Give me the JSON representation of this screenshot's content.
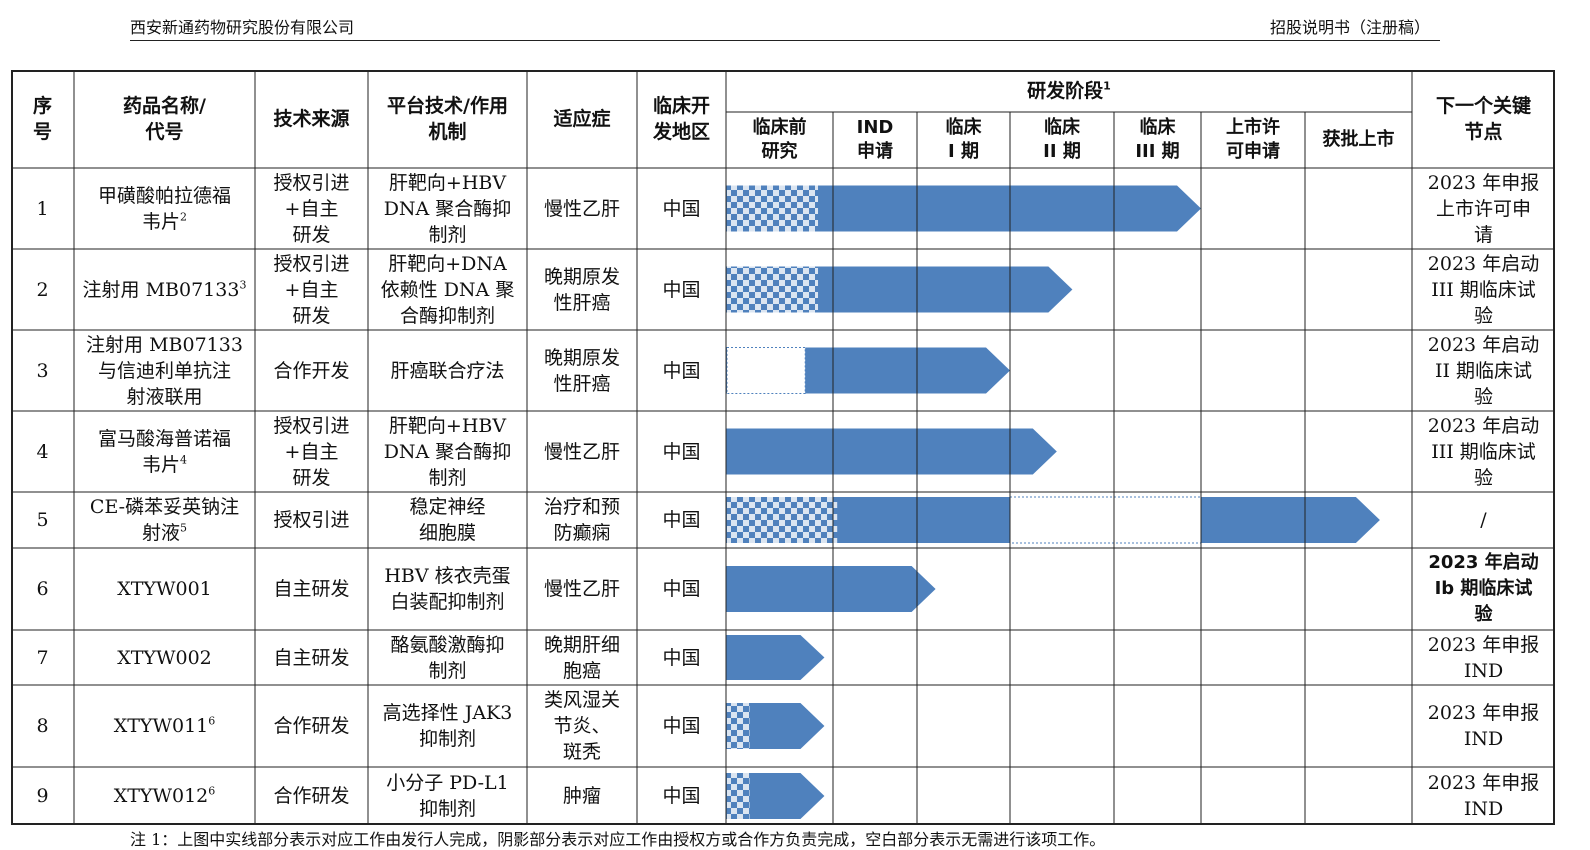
{
  "page_header": {
    "company": "西安新通药物研究股份有限公司",
    "doc_type": "招股说明书（注册稿）"
  },
  "table": {
    "headers": {
      "no": "序\n号",
      "drug_name": "药品名称/\n代号",
      "tech_source": "技术来源",
      "platform": "平台技术/作用\n机制",
      "indication": "适应症",
      "region": "临床开\n发地区",
      "stage_group": "研发阶段",
      "stage_group_sup": "1",
      "next_milestone": "下一个关键\n节点"
    },
    "stage_columns": [
      "临床前\n研究",
      "IND\n申请",
      "临床\nI 期",
      "临床\nII 期",
      "临床\nIII 期",
      "上市许\n可申请",
      "获批上市"
    ],
    "rows": [
      {
        "no": "1",
        "name": "甲磺酸帕拉德福\n韦片",
        "name_sup": "2",
        "source": "授权引进\n+自主\n研发",
        "mechanism": "肝靶向+HBV\nDNA 聚合酶抑\n制剂",
        "indication": "慢性乙肝",
        "region": "中国",
        "milestone": "2023 年申报\n上市许可申\n请",
        "progress_stage": 5.0
      },
      {
        "no": "2",
        "name": "注射用 MB07133",
        "name_sup": "3",
        "source": "授权引进\n+自主\n研发",
        "mechanism": "肝靶向+DNA\n依赖性 DNA 聚\n合酶抑制剂",
        "indication": "晚期原发\n性肝癌",
        "region": "中国",
        "milestone": "2023 年启动\nIII 期临床试\n验",
        "progress_stage": 3.6
      },
      {
        "no": "3",
        "name": "注射用 MB07133\n与信迪利单抗注\n射液联用",
        "name_sup": "",
        "source": "合作开发",
        "mechanism": "肝癌联合疗法",
        "indication": "晚期原发\n性肝癌",
        "region": "中国",
        "milestone": "2023 年启动\nII 期临床试\n验",
        "progress_stage": 3.0
      },
      {
        "no": "4",
        "name": "富马酸海普诺福\n韦片",
        "name_sup": "4",
        "source": "授权引进\n+自主\n研发",
        "mechanism": "肝靶向+HBV\nDNA 聚合酶抑\n制剂",
        "indication": "慢性乙肝",
        "region": "中国",
        "milestone": "2023 年启动\nIII 期临床试\n验",
        "progress_stage": 3.45
      },
      {
        "no": "5",
        "name": "CE-磷苯妥英钠注\n射液",
        "name_sup": "5",
        "source": "授权引进",
        "mechanism": "稳定神经\n细胞膜",
        "indication": "治疗和预\n防癫痫",
        "region": "中国",
        "milestone": "/",
        "progress_stage": 6.7
      },
      {
        "no": "6",
        "name": "XTYW001",
        "name_sup": "",
        "source": "自主研发",
        "mechanism": "HBV 核衣壳蛋\n白装配抑制剂",
        "indication": "慢性乙肝",
        "region": "中国",
        "milestone": "2023 年启动\nIb 期临床试\n验",
        "progress_stage": 2.2
      },
      {
        "no": "7",
        "name": "XTYW002",
        "name_sup": "",
        "source": "自主研发",
        "mechanism": "酪氨酸激酶抑\n制剂",
        "indication": "晚期肝细\n胞癌",
        "region": "中国",
        "milestone": "2023 年申报\nIND",
        "progress_stage": 0.92
      },
      {
        "no": "8",
        "name": "XTYW011",
        "name_sup": "6",
        "source": "合作研发",
        "mechanism": "高选择性 JAK3\n抑制剂",
        "indication": "类风湿关\n节炎、\n斑秃",
        "region": "中国",
        "milestone": "2023 年申报\nIND",
        "progress_stage": 0.92
      },
      {
        "no": "9",
        "name": "XTYW012",
        "name_sup": "6",
        "source": "合作研发",
        "mechanism": "小分子 PD-L1\n抑制剂",
        "indication": "肿瘤",
        "region": "中国",
        "milestone": "2023 年申报\nIND",
        "progress_stage": 0.92
      }
    ]
  },
  "legend": {
    "solid": "实线部分表示对应工作由发行人完成",
    "hatched": "阴影部分表示对应工作由授权方或合作方负责完成",
    "blank": "空白部分表示无需进行该项工作"
  },
  "footnote": "注 1：上图中实线部分表示对应工作由发行人完成，阴影部分表示对应工作由授权方或合作方负责完成，空白部分表示无需进行该项工作。",
  "colors": {
    "bar": "#4f81bd",
    "checker_a": "#4f81bd",
    "checker_b": "#dbe5f1",
    "grid": "#222222"
  }
}
